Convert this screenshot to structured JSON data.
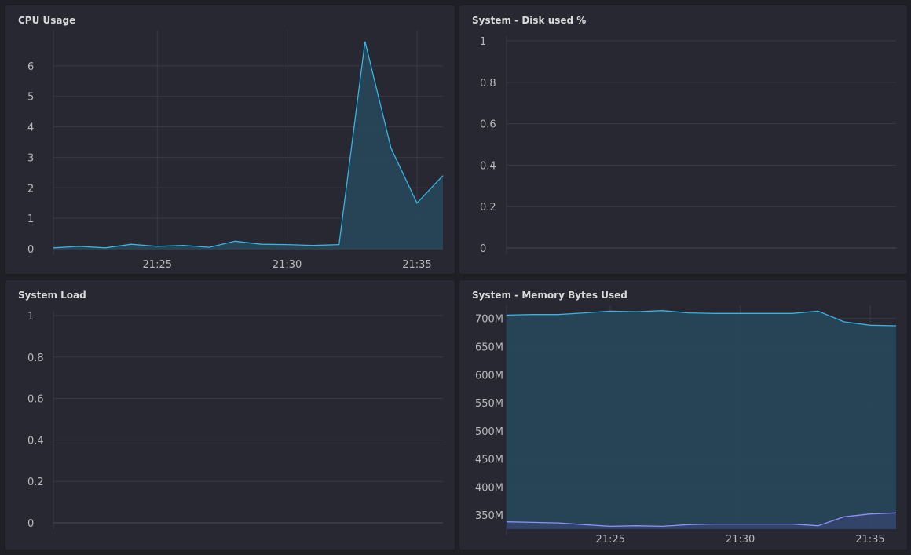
{
  "colors": {
    "cyan": "#33b5e5",
    "cyan_fill": "#26475a",
    "purple": "#8f8fff",
    "purple_fill": "#34466a",
    "grid": "#3a3a44",
    "zero_axis": "#4a4a55"
  },
  "panels": {
    "cpu": {
      "title": "CPU Usage"
    },
    "disk": {
      "title": "System - Disk used %"
    },
    "load": {
      "title": "System Load"
    },
    "mem": {
      "title": "System - Memory Bytes Used"
    }
  },
  "chart_data": [
    {
      "id": "cpu",
      "type": "area",
      "title": "CPU Usage",
      "x": [
        "21:21",
        "21:22",
        "21:23",
        "21:24",
        "21:25",
        "21:26",
        "21:27",
        "21:28",
        "21:29",
        "21:30",
        "21:31",
        "21:32",
        "21:33",
        "21:34",
        "21:35",
        "21:36"
      ],
      "x_ticks": [
        "21:25",
        "21:30",
        "21:35"
      ],
      "ylim": [
        0,
        7
      ],
      "y_ticks": [
        0,
        1,
        2,
        3,
        4,
        5,
        6
      ],
      "series": [
        {
          "values": [
            0.03,
            0.08,
            0.03,
            0.15,
            0.08,
            0.11,
            0.05,
            0.25,
            0.15,
            0.14,
            0.11,
            0.14,
            6.8,
            3.3,
            1.5,
            2.4
          ],
          "color": "cyan"
        }
      ]
    },
    {
      "id": "disk",
      "type": "line",
      "title": "System - Disk used %",
      "x_ticks": [],
      "ylim": [
        0,
        1
      ],
      "y_ticks": [
        "0",
        "0.2",
        "0.4",
        "0.6",
        "0.8",
        "1"
      ],
      "series": []
    },
    {
      "id": "load",
      "type": "line",
      "title": "System Load",
      "x_ticks": [],
      "ylim": [
        0,
        1
      ],
      "y_ticks": [
        "0",
        "0.2",
        "0.4",
        "0.6",
        "0.8",
        "1"
      ],
      "series": []
    },
    {
      "id": "mem",
      "type": "area",
      "title": "System - Memory Bytes Used",
      "x": [
        "21:21",
        "21:22",
        "21:23",
        "21:24",
        "21:25",
        "21:26",
        "21:27",
        "21:28",
        "21:29",
        "21:30",
        "21:31",
        "21:32",
        "21:33",
        "21:34",
        "21:35",
        "21:36"
      ],
      "x_ticks": [
        "21:25",
        "21:30",
        "21:35"
      ],
      "ylim": [
        325,
        715
      ],
      "y_ticks": [
        "350M",
        "400M",
        "450M",
        "500M",
        "550M",
        "600M",
        "650M",
        "700M"
      ],
      "y_tick_values": [
        350,
        400,
        450,
        500,
        550,
        600,
        650,
        700
      ],
      "series": [
        {
          "values": [
            706,
            707,
            707,
            710,
            713,
            712,
            714,
            710,
            709,
            709,
            709,
            709,
            713,
            694,
            688,
            687
          ],
          "color": "cyan"
        },
        {
          "values": [
            338,
            337,
            336,
            333,
            330,
            331,
            330,
            333,
            334,
            334,
            334,
            334,
            331,
            347,
            352,
            354
          ],
          "color": "purple"
        }
      ]
    }
  ]
}
